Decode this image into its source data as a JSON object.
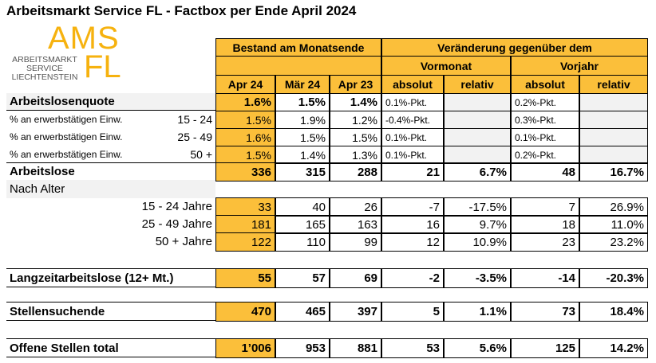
{
  "header": {
    "title": "Arbeitsmarkt Service FL - Factbox per Ende April 2024",
    "logo": {
      "ams": "AMS",
      "fl": "FL",
      "line1": "ARBEITSMARKT",
      "line2": "SERVICE",
      "line3": "LIECHTENSTEIN"
    }
  },
  "table": {
    "group_headers": [
      "Bestand am Monatsende",
      "Veränderung gegenüber dem"
    ],
    "sub_headers": [
      "Vormonat",
      "Vorjahr"
    ],
    "columns": [
      "Apr 24",
      "Mär 24",
      "Apr 23",
      "absolut",
      "relativ",
      "absolut",
      "relativ"
    ],
    "rows": [
      {
        "label": "Arbeitslosenquote",
        "cells": [
          "1.6%",
          "1.5%",
          "1.4%",
          "0.1%-Pkt.",
          null,
          "0.2%-Pkt.",
          null
        ]
      },
      {
        "label": "% an erwerbstätigen Einw.",
        "sub": "15 - 24",
        "cells": [
          "1.5%",
          "1.9%",
          "1.2%",
          "-0.4%-Pkt.",
          null,
          "0.3%-Pkt.",
          null
        ]
      },
      {
        "label": "% an erwerbstätigen Einw.",
        "sub": "25 - 49",
        "cells": [
          "1.6%",
          "1.5%",
          "1.5%",
          "0.1%-Pkt.",
          null,
          "0.1%-Pkt.",
          null
        ]
      },
      {
        "label": "% an erwerbstätigen Einw.",
        "sub": "50 +",
        "cells": [
          "1.5%",
          "1.4%",
          "1.3%",
          "0.1%-Pkt.",
          null,
          "0.2%-Pkt.",
          null
        ]
      },
      {
        "label": "Arbeitslose",
        "cells": [
          "336",
          "315",
          "288",
          "21",
          "6.7%",
          "48",
          "16.7%"
        ]
      },
      {
        "label": "Nach Alter"
      },
      {
        "label": "15 - 24 Jahre",
        "cells": [
          "33",
          "40",
          "26",
          "-7",
          "-17.5%",
          "7",
          "26.9%"
        ]
      },
      {
        "label": "25 - 49 Jahre",
        "cells": [
          "181",
          "165",
          "163",
          "16",
          "9.7%",
          "18",
          "11.0%"
        ]
      },
      {
        "label": "50 + Jahre",
        "cells": [
          "122",
          "110",
          "99",
          "12",
          "10.9%",
          "23",
          "23.2%"
        ]
      },
      {
        "label": "Langzeitarbeitslose (12+ Mt.)",
        "cells": [
          "55",
          "57",
          "69",
          "-2",
          "-3.5%",
          "-14",
          "-20.3%"
        ]
      },
      {
        "label": "Stellensuchende",
        "cells": [
          "470",
          "465",
          "397",
          "5",
          "1.1%",
          "73",
          "18.4%"
        ]
      },
      {
        "label": "Offene Stellen total",
        "cells": [
          "1’006",
          "953",
          "881",
          "53",
          "5.6%",
          "125",
          "14.2%"
        ]
      }
    ]
  }
}
